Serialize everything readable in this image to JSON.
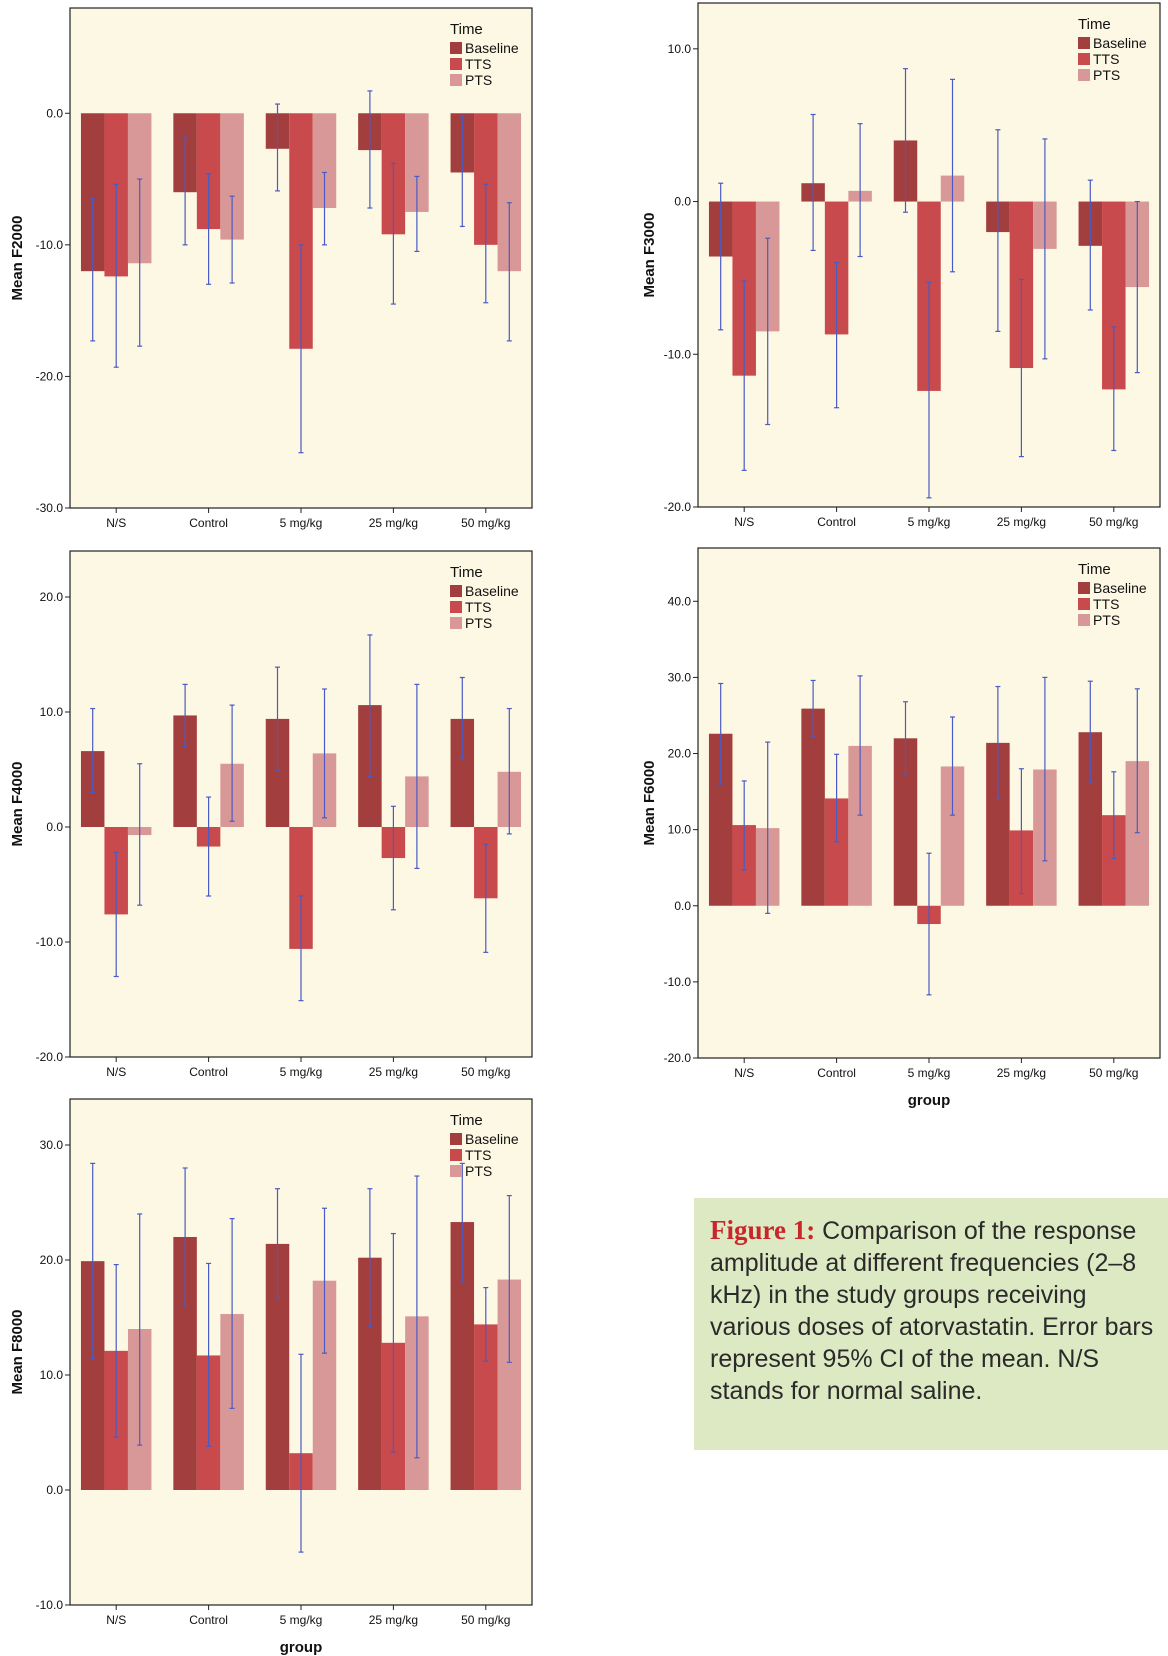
{
  "legend": {
    "title": "Time",
    "entries": [
      "Baseline",
      "TTS",
      "PTS"
    ]
  },
  "colors": {
    "Baseline": "#a33e3e",
    "TTS": "#c94a4c",
    "PTS": "#d99898",
    "plot_bg": "#fcf8e4",
    "error_bar": "#4a5bc4"
  },
  "categories": [
    "N/S",
    "Control",
    "5 mg/kg",
    "25 mg/kg",
    "50 mg/kg"
  ],
  "caption": {
    "lead": "Figure 1:",
    "text": " Comparison of the response amplitude at different frequencies (2–8 kHz) in the study groups receiving various doses of atorvastatin. Error bars represent 95% CI of the mean. N/S stands for normal saline."
  },
  "chart_data": [
    {
      "type": "bar",
      "ylabel": "Mean F2000",
      "xlabel": "",
      "ylim": [
        -30,
        8
      ],
      "yticks": [
        -30,
        -20,
        -10,
        0
      ],
      "tick_labels": [
        "-30.0",
        "-20.0",
        "-10.0",
        "0.0"
      ],
      "categories": [
        "N/S",
        "Control",
        "5 mg/kg",
        "25 mg/kg",
        "50 mg/kg"
      ],
      "legend_position": "top-right",
      "grid": false,
      "series": [
        {
          "name": "Baseline",
          "values": [
            -12.0,
            -6.0,
            -2.7,
            -2.8,
            -4.5
          ],
          "ci": [
            [
              -17.3,
              -6.5
            ],
            [
              -10.0,
              -1.8
            ],
            [
              -5.9,
              0.7
            ],
            [
              -7.2,
              1.7
            ],
            [
              -8.6,
              -0.2
            ]
          ]
        },
        {
          "name": "TTS",
          "values": [
            -12.4,
            -8.8,
            -17.9,
            -9.2,
            -10.0
          ],
          "ci": [
            [
              -19.3,
              -5.4
            ],
            [
              -13.0,
              -4.6
            ],
            [
              -25.8,
              -10.0
            ],
            [
              -14.5,
              -3.8
            ],
            [
              -14.4,
              -5.4
            ]
          ]
        },
        {
          "name": "PTS",
          "values": [
            -11.4,
            -9.6,
            -7.2,
            -7.5,
            -12.0
          ],
          "ci": [
            [
              -17.7,
              -5.0
            ],
            [
              -12.9,
              -6.3
            ],
            [
              -10.0,
              -4.5
            ],
            [
              -10.5,
              -4.8
            ],
            [
              -17.3,
              -6.8
            ]
          ]
        }
      ]
    },
    {
      "type": "bar",
      "ylabel": "Mean F3000",
      "xlabel": "",
      "ylim": [
        -20,
        13
      ],
      "yticks": [
        -20,
        -10,
        0,
        10
      ],
      "tick_labels": [
        "-20.0",
        "-10.0",
        "0.0",
        "10.0"
      ],
      "categories": [
        "N/S",
        "Control",
        "5 mg/kg",
        "25 mg/kg",
        "50 mg/kg"
      ],
      "legend_position": "top-right",
      "grid": false,
      "series": [
        {
          "name": "Baseline",
          "values": [
            -3.6,
            1.2,
            4.0,
            -2.0,
            -2.9
          ],
          "ci": [
            [
              -8.4,
              1.2
            ],
            [
              -3.2,
              5.7
            ],
            [
              -0.7,
              8.7
            ],
            [
              -8.5,
              4.7
            ],
            [
              -7.1,
              1.4
            ]
          ]
        },
        {
          "name": "TTS",
          "values": [
            -11.4,
            -8.7,
            -12.4,
            -10.9,
            -12.3
          ],
          "ci": [
            [
              -17.6,
              -5.2
            ],
            [
              -13.5,
              -4.0
            ],
            [
              -19.4,
              -5.3
            ],
            [
              -16.7,
              -5.1
            ],
            [
              -16.3,
              -8.2
            ]
          ]
        },
        {
          "name": "PTS",
          "values": [
            -8.5,
            0.7,
            1.7,
            -3.1,
            -5.6
          ],
          "ci": [
            [
              -14.6,
              -2.4
            ],
            [
              -3.6,
              5.1
            ],
            [
              -4.6,
              8.0
            ],
            [
              -10.3,
              4.1
            ],
            [
              -11.2,
              0.0
            ]
          ]
        }
      ]
    },
    {
      "type": "bar",
      "ylabel": "Mean F4000",
      "xlabel": "",
      "ylim": [
        -20,
        24
      ],
      "yticks": [
        -20,
        -10,
        0,
        10,
        20
      ],
      "tick_labels": [
        "-20.0",
        "-10.0",
        "0.0",
        "10.0",
        "20.0"
      ],
      "categories": [
        "N/S",
        "Control",
        "5 mg/kg",
        "25 mg/kg",
        "50 mg/kg"
      ],
      "legend_position": "top-right",
      "grid": false,
      "series": [
        {
          "name": "Baseline",
          "values": [
            6.6,
            9.7,
            9.4,
            10.6,
            9.4
          ],
          "ci": [
            [
              3.0,
              10.3
            ],
            [
              7.0,
              12.4
            ],
            [
              4.9,
              13.9
            ],
            [
              4.4,
              16.7
            ],
            [
              5.9,
              13.0
            ]
          ]
        },
        {
          "name": "TTS",
          "values": [
            -7.6,
            -1.7,
            -10.6,
            -2.7,
            -6.2
          ],
          "ci": [
            [
              -13.0,
              -2.2
            ],
            [
              -6.0,
              2.6
            ],
            [
              -15.1,
              -6.0
            ],
            [
              -7.2,
              1.8
            ],
            [
              -10.9,
              -1.5
            ]
          ]
        },
        {
          "name": "PTS",
          "values": [
            -0.7,
            5.5,
            6.4,
            4.4,
            4.8
          ],
          "ci": [
            [
              -6.8,
              5.5
            ],
            [
              0.5,
              10.6
            ],
            [
              0.8,
              12.0
            ],
            [
              -3.6,
              12.4
            ],
            [
              -0.6,
              10.3
            ]
          ]
        }
      ]
    },
    {
      "type": "bar",
      "ylabel": "Mean F6000",
      "xlabel": "group",
      "ylim": [
        -20,
        47
      ],
      "yticks": [
        -20,
        -10,
        0,
        10,
        20,
        30,
        40
      ],
      "tick_labels": [
        "-20.0",
        "-10.0",
        "0.0",
        "10.0",
        "20.0",
        "30.0",
        "40.0"
      ],
      "categories": [
        "N/S",
        "Control",
        "5 mg/kg",
        "25 mg/kg",
        "50 mg/kg"
      ],
      "legend_position": "top-right",
      "grid": false,
      "series": [
        {
          "name": "Baseline",
          "values": [
            22.6,
            25.9,
            22.0,
            21.4,
            22.8
          ],
          "ci": [
            [
              16.0,
              29.2
            ],
            [
              22.2,
              29.6
            ],
            [
              17.2,
              26.8
            ],
            [
              14.0,
              28.8
            ],
            [
              16.1,
              29.5
            ]
          ]
        },
        {
          "name": "TTS",
          "values": [
            10.6,
            14.1,
            -2.4,
            9.9,
            11.9
          ],
          "ci": [
            [
              4.7,
              16.4
            ],
            [
              8.4,
              19.9
            ],
            [
              -11.7,
              6.9
            ],
            [
              1.6,
              18.0
            ],
            [
              6.2,
              17.6
            ]
          ]
        },
        {
          "name": "PTS",
          "values": [
            10.2,
            21.0,
            18.3,
            17.9,
            19.0
          ],
          "ci": [
            [
              -1.0,
              21.5
            ],
            [
              11.9,
              30.2
            ],
            [
              11.9,
              24.8
            ],
            [
              5.9,
              30.0
            ],
            [
              9.6,
              28.5
            ]
          ]
        }
      ]
    },
    {
      "type": "bar",
      "ylabel": "Mean F8000",
      "xlabel": "group",
      "ylim": [
        -10,
        34
      ],
      "yticks": [
        -10,
        0,
        10,
        20,
        30
      ],
      "tick_labels": [
        "-10.0",
        "0.0",
        "10.0",
        "20.0",
        "30.0"
      ],
      "categories": [
        "N/S",
        "Control",
        "5 mg/kg",
        "25 mg/kg",
        "50 mg/kg"
      ],
      "legend_position": "top-right",
      "grid": false,
      "series": [
        {
          "name": "Baseline",
          "values": [
            19.9,
            22.0,
            21.4,
            20.2,
            23.3
          ],
          "ci": [
            [
              11.4,
              28.4
            ],
            [
              16.0,
              28.0
            ],
            [
              16.7,
              26.2
            ],
            [
              14.2,
              26.2
            ],
            [
              18.1,
              28.4
            ]
          ]
        },
        {
          "name": "TTS",
          "values": [
            12.1,
            11.7,
            3.2,
            12.8,
            14.4
          ],
          "ci": [
            [
              4.6,
              19.6
            ],
            [
              3.8,
              19.7
            ],
            [
              -5.4,
              11.8
            ],
            [
              3.3,
              22.3
            ],
            [
              11.2,
              17.6
            ]
          ]
        },
        {
          "name": "PTS",
          "values": [
            14.0,
            15.3,
            18.2,
            15.1,
            18.3
          ],
          "ci": [
            [
              3.9,
              24.0
            ],
            [
              7.1,
              23.6
            ],
            [
              11.9,
              24.5
            ],
            [
              2.8,
              27.3
            ],
            [
              11.1,
              25.6
            ]
          ]
        }
      ]
    }
  ]
}
